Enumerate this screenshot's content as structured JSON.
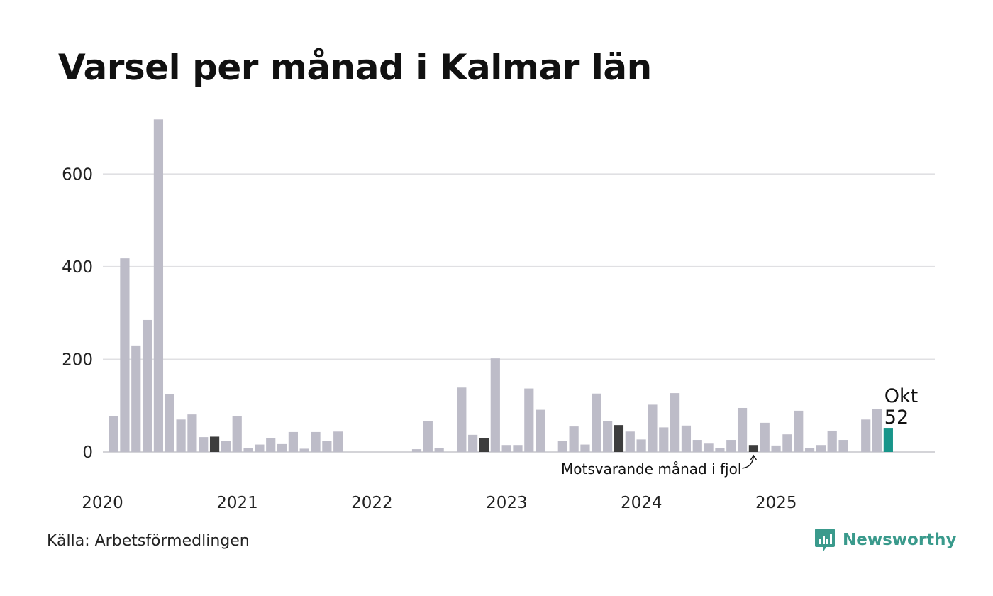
{
  "chart_data": {
    "type": "bar",
    "title": "Varsel per månad i Kalmar län",
    "xlabel": "",
    "ylabel": "",
    "ylim": [
      0,
      720
    ],
    "y_ticks": [
      0,
      200,
      400,
      600
    ],
    "grid": true,
    "year_labels": [
      "2020",
      "2021",
      "2022",
      "2023",
      "2024",
      "2025"
    ],
    "start": "2020-01",
    "values": [
      78,
      418,
      230,
      285,
      718,
      125,
      70,
      81,
      32,
      33,
      23,
      77,
      9,
      16,
      30,
      17,
      43,
      7,
      43,
      24,
      44,
      0,
      0,
      0,
      0,
      0,
      0,
      6,
      67,
      9,
      0,
      139,
      37,
      30,
      202,
      15,
      15,
      137,
      91,
      0,
      23,
      55,
      16,
      126,
      67,
      58,
      44,
      27,
      102,
      53,
      127,
      57,
      26,
      18,
      8,
      26,
      95,
      15,
      63,
      14,
      38,
      89,
      8,
      15,
      46,
      26,
      0,
      70,
      93,
      52
    ],
    "highlight": {
      "label": "Okt",
      "value": "52",
      "color": "#18958a"
    },
    "comparison_color": "#3d3d3d",
    "bar_color": "#bdbcc8",
    "comparison_indices": [
      9,
      21,
      33,
      45,
      57
    ],
    "annotation": "Motsvarande månad i fjol",
    "source": "Källa: Arbetsförmedlingen",
    "brand": "Newsworthy"
  }
}
